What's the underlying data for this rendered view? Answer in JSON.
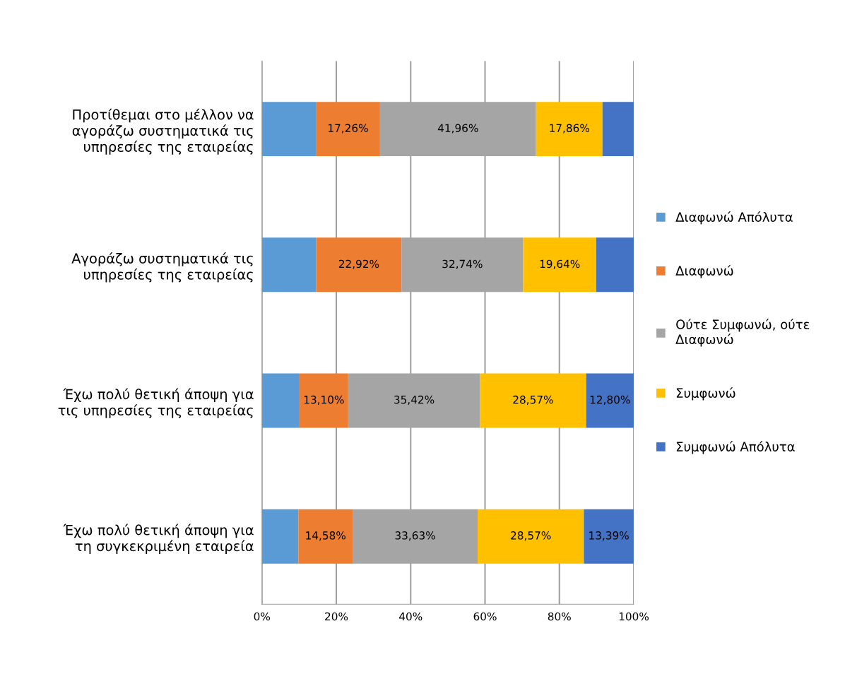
{
  "chart_data": {
    "type": "bar",
    "orientation": "horizontal",
    "stacked": true,
    "categories": [
      "Προτίθεμαι στο μέλλον να\nαγοράζω συστηματικά τις\nυπηρεσίες της εταιρείας",
      "Αγοράζω συστηματικά τις\nυπηρεσίες της εταιρείας",
      "Έχω πολύ θετική άποψη για\nτις υπηρεσίες της εταιρείας",
      "Έχω πολύ θετική άποψη για\nτη συγκεκριμένη εταιρεία"
    ],
    "series": [
      {
        "name": "Διαφωνώ Απόλυτα",
        "color": "#5b9bd5",
        "values": [
          14.5,
          14.6,
          10.1,
          9.8
        ],
        "value_labels": [
          null,
          null,
          null,
          null
        ]
      },
      {
        "name": "Διαφωνώ",
        "color": "#ed7d31",
        "values": [
          17.26,
          22.92,
          13.1,
          14.58
        ],
        "value_labels": [
          "17,26%",
          "22,92%",
          "13,10%",
          "14,58%"
        ]
      },
      {
        "name": "Ούτε Συμφωνώ, ούτε\nΔιαφωνώ",
        "color": "#a5a5a5",
        "values": [
          41.96,
          32.74,
          35.42,
          33.63
        ],
        "value_labels": [
          "41,96%",
          "32,74%",
          "35,42%",
          "33,63%"
        ]
      },
      {
        "name": "Συμφωνώ",
        "color": "#ffc000",
        "values": [
          17.86,
          19.64,
          28.57,
          28.57
        ],
        "value_labels": [
          "17,86%",
          "19,64%",
          "28,57%",
          "28,57%"
        ]
      },
      {
        "name": "Συμφωνώ Απόλυτα",
        "color": "#4472c4",
        "values": [
          8.4,
          10.1,
          12.8,
          13.39
        ],
        "value_labels": [
          null,
          null,
          "12,80%",
          "13,39%"
        ]
      }
    ],
    "xlim": [
      0,
      100
    ],
    "xticks": [
      {
        "value": 0,
        "label": "0%"
      },
      {
        "value": 20,
        "label": "20%"
      },
      {
        "value": 40,
        "label": "40%"
      },
      {
        "value": 60,
        "label": "60%"
      },
      {
        "value": 80,
        "label": "80%"
      },
      {
        "value": 100,
        "label": "100%"
      }
    ],
    "grid": "x",
    "legend": "right"
  }
}
